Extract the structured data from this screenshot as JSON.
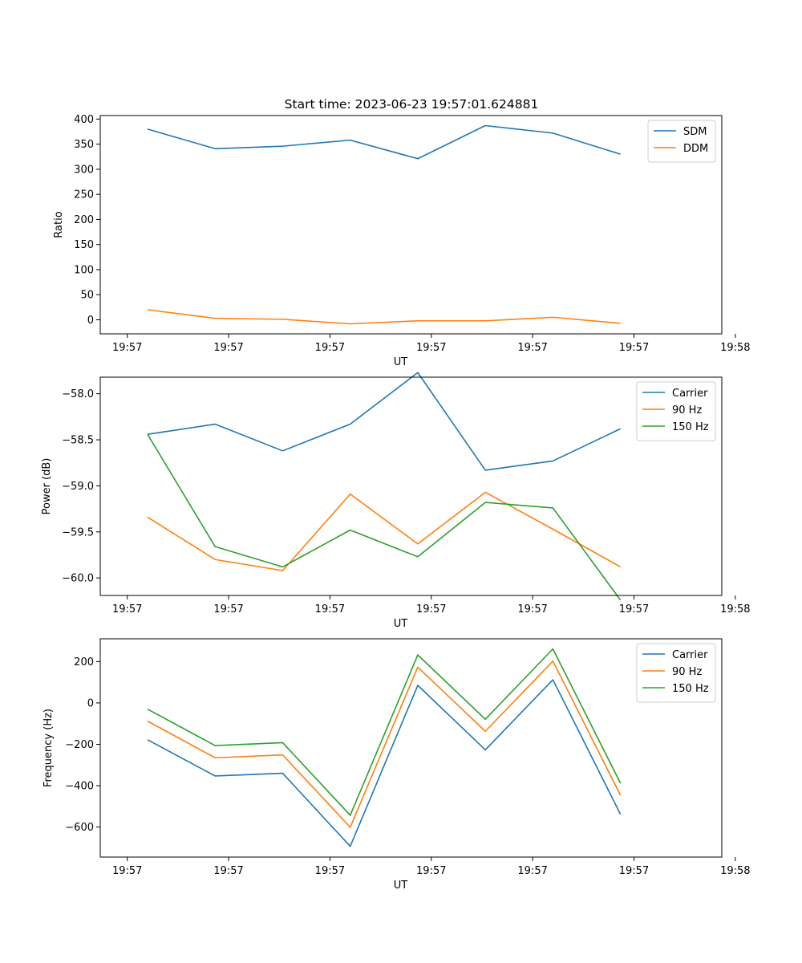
{
  "figure": {
    "title": "Start time: 2023-06-23 19:57:01.624881"
  },
  "chart_data": [
    {
      "type": "line",
      "title": "Start time: 2023-06-23 19:57:01.624881",
      "xlabel": "UT",
      "ylabel": "Ratio",
      "xlim": [
        -0.4,
        8.8
      ],
      "x": [
        0.3,
        1.3,
        2.3,
        3.3,
        4.3,
        5.3,
        6.3,
        7.3
      ],
      "xticks": [
        0,
        1.5,
        3,
        4.5,
        6,
        7.5,
        9
      ],
      "xticklabels": [
        "19:57",
        "19:57",
        "19:57",
        "19:57",
        "19:57",
        "19:57",
        "19:58"
      ],
      "ylim": [
        -28,
        407
      ],
      "yticks": [
        0,
        50,
        100,
        150,
        200,
        250,
        300,
        350,
        400
      ],
      "yticklabels": [
        "0",
        "50",
        "100",
        "150",
        "200",
        "250",
        "300",
        "350",
        "400"
      ],
      "legend_position": "upper right",
      "grid": false,
      "series": [
        {
          "name": "SDM",
          "color": "#1f77b4",
          "values": [
            380,
            341,
            346,
            358,
            321,
            387,
            372,
            330
          ]
        },
        {
          "name": "DDM",
          "color": "#ff7f0e",
          "values": [
            20,
            3,
            1,
            -8,
            -2,
            -2,
            5,
            -7
          ]
        }
      ]
    },
    {
      "type": "line",
      "xlabel": "UT",
      "ylabel": "Power (dB)",
      "xlim": [
        -0.4,
        8.8
      ],
      "x": [
        0.3,
        1.3,
        2.3,
        3.3,
        4.3,
        5.3,
        6.3,
        7.3
      ],
      "xticks": [
        0,
        1.5,
        3,
        4.5,
        6,
        7.5,
        9
      ],
      "xticklabels": [
        "19:57",
        "19:57",
        "19:57",
        "19:57",
        "19:57",
        "19:57",
        "19:58"
      ],
      "ylim": [
        -60.19,
        -57.82
      ],
      "yticks": [
        -58.0,
        -58.5,
        -59.0,
        -59.5,
        -60.0
      ],
      "yticklabels": [
        "−58.0",
        "−58.5",
        "−59.0",
        "−59.5",
        "−60.0"
      ],
      "legend_position": "upper right",
      "grid": false,
      "series": [
        {
          "name": "Carrier",
          "color": "#1f77b4",
          "values": [
            -58.44,
            -58.33,
            -58.62,
            -58.33,
            -57.77,
            -58.83,
            -58.73,
            -58.38
          ]
        },
        {
          "name": "90 Hz",
          "color": "#ff7f0e",
          "values": [
            -59.34,
            -59.8,
            -59.92,
            -59.09,
            -59.63,
            -59.07,
            -59.47,
            -59.88
          ]
        },
        {
          "name": "150 Hz",
          "color": "#2ca02c",
          "values": [
            -58.44,
            -59.66,
            -59.88,
            -59.48,
            -59.77,
            -59.18,
            -59.24,
            -60.24
          ]
        }
      ]
    },
    {
      "type": "line",
      "xlabel": "UT",
      "ylabel": "Frequency (Hz)",
      "xlim": [
        -0.4,
        8.8
      ],
      "x": [
        0.3,
        1.3,
        2.3,
        3.3,
        4.3,
        5.3,
        6.3,
        7.3
      ],
      "xticks": [
        0,
        1.5,
        3,
        4.5,
        6,
        7.5,
        9
      ],
      "xticklabels": [
        "19:57",
        "19:57",
        "19:57",
        "19:57",
        "19:57",
        "19:57",
        "19:58"
      ],
      "ylim": [
        -745,
        310
      ],
      "yticks": [
        200,
        0,
        -200,
        -400,
        -600
      ],
      "yticklabels": [
        "200",
        "0",
        "−200",
        "−400",
        "−600"
      ],
      "legend_position": "upper right",
      "grid": false,
      "series": [
        {
          "name": "Carrier",
          "color": "#1f77b4",
          "values": [
            -178,
            -353,
            -340,
            -693,
            85,
            -227,
            112,
            -538
          ]
        },
        {
          "name": "90 Hz",
          "color": "#ff7f0e",
          "values": [
            -88,
            -265,
            -251,
            -601,
            173,
            -137,
            202,
            -446
          ]
        },
        {
          "name": "150 Hz",
          "color": "#2ca02c",
          "values": [
            -30,
            -206,
            -192,
            -543,
            232,
            -79,
            261,
            -388
          ]
        }
      ]
    }
  ]
}
